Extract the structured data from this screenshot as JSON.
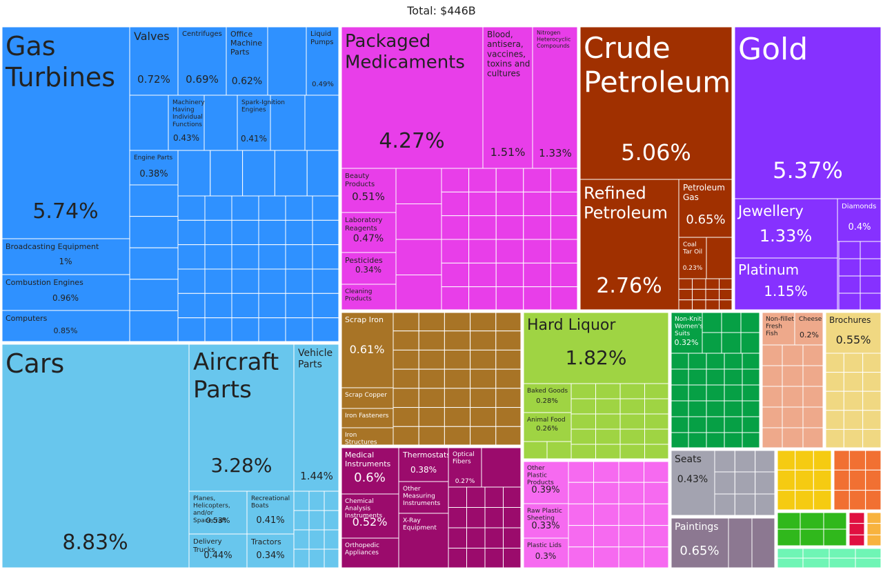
{
  "chart_data": {
    "type": "treemap",
    "title": "Total: $446B",
    "value_unit": "percent_of_total",
    "sector_colors": {
      "machines": "#2f91ff",
      "transportation": "#68c6ed",
      "chemicals": "#e83ee9",
      "mineral_products": "#a03000",
      "precious_metals": "#8631ff",
      "metals": "#a87426",
      "instruments": "#9b0b6c",
      "foodstuffs": "#9fd443",
      "plastics_rubbers": "#f66af0",
      "textiles": "#06a045",
      "animal_products": "#eea98b",
      "paper_goods": "#f0d882",
      "miscellaneous": "#a3a3b0",
      "arts_antiques": "#8c7891",
      "footwear": "#f5cb12",
      "stone_glass": "#f17032",
      "vegetable_products": "#30b81c",
      "weapons": "#e01040",
      "wood_products": "#f8b33e",
      "animal_hides": "#6ff5b5"
    },
    "items": [
      {
        "name": "Gas Turbines",
        "value": "5.74%",
        "sector": "machines"
      },
      {
        "name": "Broadcasting Equipment",
        "value": "1%",
        "sector": "machines"
      },
      {
        "name": "Combustion Engines",
        "value": "0.96%",
        "sector": "machines"
      },
      {
        "name": "Computers",
        "value": "0.85%",
        "sector": "machines"
      },
      {
        "name": "Valves",
        "value": "0.72%",
        "sector": "machines"
      },
      {
        "name": "Centrifuges",
        "value": "0.69%",
        "sector": "machines"
      },
      {
        "name": "Office Machine Parts",
        "value": "0.62%",
        "sector": "machines"
      },
      {
        "name": "Liquid Pumps",
        "value": "0.49%",
        "sector": "machines"
      },
      {
        "name": "Machinery Having Individual Functions",
        "value": "0.43%",
        "sector": "machines"
      },
      {
        "name": "Spark-Ignition Engines",
        "value": "0.41%",
        "sector": "machines"
      },
      {
        "name": "Engine Parts",
        "value": "0.38%",
        "sector": "machines"
      },
      {
        "name": "Cars",
        "value": "8.83%",
        "sector": "transportation"
      },
      {
        "name": "Aircraft Parts",
        "value": "3.28%",
        "sector": "transportation"
      },
      {
        "name": "Vehicle Parts",
        "value": "1.44%",
        "sector": "transportation"
      },
      {
        "name": "Planes, Helicopters, and/or Spacecraft",
        "value": "0.53%",
        "sector": "transportation"
      },
      {
        "name": "Recreational Boats",
        "value": "0.41%",
        "sector": "transportation"
      },
      {
        "name": "Delivery Trucks",
        "value": "0.44%",
        "sector": "transportation"
      },
      {
        "name": "Tractors",
        "value": "0.34%",
        "sector": "transportation"
      },
      {
        "name": "Packaged Medicaments",
        "value": "4.27%",
        "sector": "chemicals"
      },
      {
        "name": "Blood, antisera, vaccines, toxins and cultures",
        "value": "1.51%",
        "sector": "chemicals"
      },
      {
        "name": "Nitrogen Heterocyclic Compounds",
        "value": "1.33%",
        "sector": "chemicals"
      },
      {
        "name": "Beauty Products",
        "value": "0.51%",
        "sector": "chemicals"
      },
      {
        "name": "Laboratory Reagents",
        "value": "0.47%",
        "sector": "chemicals"
      },
      {
        "name": "Pesticides",
        "value": "0.34%",
        "sector": "chemicals"
      },
      {
        "name": "Cleaning Products",
        "value": "",
        "sector": "chemicals"
      },
      {
        "name": "Crude Petroleum",
        "value": "5.06%",
        "sector": "mineral_products"
      },
      {
        "name": "Refined Petroleum",
        "value": "2.76%",
        "sector": "mineral_products"
      },
      {
        "name": "Petroleum Gas",
        "value": "0.65%",
        "sector": "mineral_products"
      },
      {
        "name": "Coal Tar Oil",
        "value": "0.23%",
        "sector": "mineral_products"
      },
      {
        "name": "Gold",
        "value": "5.37%",
        "sector": "precious_metals"
      },
      {
        "name": "Jewellery",
        "value": "1.33%",
        "sector": "precious_metals"
      },
      {
        "name": "Diamonds",
        "value": "0.4%",
        "sector": "precious_metals"
      },
      {
        "name": "Platinum",
        "value": "1.15%",
        "sector": "precious_metals"
      },
      {
        "name": "Scrap Iron",
        "value": "0.61%",
        "sector": "metals"
      },
      {
        "name": "Scrap Copper",
        "value": "",
        "sector": "metals"
      },
      {
        "name": "Iron Fasteners",
        "value": "",
        "sector": "metals"
      },
      {
        "name": "Iron Structures",
        "value": "",
        "sector": "metals"
      },
      {
        "name": "Medical Instruments",
        "value": "0.6%",
        "sector": "instruments"
      },
      {
        "name": "Thermostats",
        "value": "0.38%",
        "sector": "instruments"
      },
      {
        "name": "Optical Fibers",
        "value": "0.27%",
        "sector": "instruments"
      },
      {
        "name": "Other Measuring Instruments",
        "value": "",
        "sector": "instruments"
      },
      {
        "name": "Chemical Analysis Instruments",
        "value": "0.52%",
        "sector": "instruments"
      },
      {
        "name": "Orthopedic Appliances",
        "value": "",
        "sector": "instruments"
      },
      {
        "name": "X-Ray Equipment",
        "value": "",
        "sector": "instruments"
      },
      {
        "name": "Hard Liquor",
        "value": "1.82%",
        "sector": "foodstuffs"
      },
      {
        "name": "Baked Goods",
        "value": "0.28%",
        "sector": "foodstuffs"
      },
      {
        "name": "Animal Food",
        "value": "0.26%",
        "sector": "foodstuffs"
      },
      {
        "name": "Other Plastic Products",
        "value": "0.39%",
        "sector": "plastics_rubbers"
      },
      {
        "name": "Raw Plastic Sheeting",
        "value": "0.33%",
        "sector": "plastics_rubbers"
      },
      {
        "name": "Plastic Lids",
        "value": "0.3%",
        "sector": "plastics_rubbers"
      },
      {
        "name": "Non-Knit Women's Suits",
        "value": "0.32%",
        "sector": "textiles"
      },
      {
        "name": "Non-fillet Fresh Fish",
        "value": "",
        "sector": "animal_products"
      },
      {
        "name": "Cheese",
        "value": "0.2%",
        "sector": "animal_products"
      },
      {
        "name": "Brochures",
        "value": "0.55%",
        "sector": "paper_goods"
      },
      {
        "name": "Seats",
        "value": "0.43%",
        "sector": "miscellaneous"
      },
      {
        "name": "Paintings",
        "value": "0.65%",
        "sector": "arts_antiques"
      }
    ]
  }
}
